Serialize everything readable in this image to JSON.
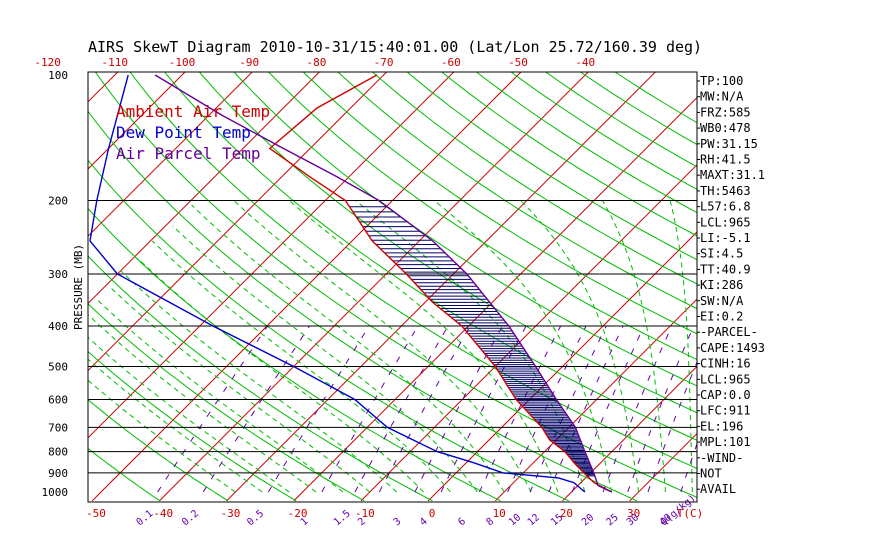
{
  "chart_data": {
    "type": "skewt",
    "title": "AIRS SkewT Diagram 2010-10-31/15:40:01.00 (Lat/Lon 25.72/160.39 deg)",
    "ylabel": "PRESSURE (MB)",
    "xlabel": "T(C)",
    "mixing_ratio_unit": "Q(g/kg)",
    "pressure_ticks": [
      100,
      200,
      300,
      400,
      500,
      600,
      700,
      800,
      900,
      1000
    ],
    "pressure_labels": [
      "100",
      "200",
      "300",
      "400",
      "500",
      "600",
      "700",
      "800",
      "900",
      "1000"
    ],
    "top_temp_labels": [
      "-120",
      "-110",
      "-100",
      "-90",
      "-80",
      "-70",
      "-60",
      "-50",
      "-40"
    ],
    "bottom_temp_labels": [
      "-50",
      "-40",
      "-30",
      "-20",
      "-10",
      "0",
      "10",
      "20",
      "30"
    ],
    "mixing_ratio_labels": [
      "0.1",
      "0.2",
      "0.5",
      "1",
      "1.5",
      "2",
      "3",
      "4",
      "6",
      "8",
      "10",
      "12",
      "15",
      "20",
      "25",
      "30",
      "40"
    ],
    "legend": [
      {
        "name": "Ambient Air Temp",
        "color": "#cc0000"
      },
      {
        "name": "Dew Point Temp",
        "color": "#0000cc"
      },
      {
        "name": "Air Parcel Temp",
        "color": "#660099"
      }
    ],
    "series": [
      {
        "name": "Ambient Air Temp",
        "color": "#cc0000",
        "points": [
          [
            1000,
            26
          ],
          [
            950,
            22
          ],
          [
            900,
            19
          ],
          [
            850,
            16
          ],
          [
            800,
            13
          ],
          [
            750,
            9
          ],
          [
            700,
            6
          ],
          [
            600,
            -2
          ],
          [
            500,
            -10
          ],
          [
            400,
            -21
          ],
          [
            350,
            -29
          ],
          [
            300,
            -37
          ],
          [
            250,
            -47
          ],
          [
            200,
            -57
          ],
          [
            175,
            -66
          ],
          [
            150,
            -76
          ],
          [
            120,
            -75
          ],
          [
            100,
            -71
          ]
        ]
      },
      {
        "name": "Dew Point Temp",
        "color": "#0000cc",
        "points": [
          [
            1000,
            22
          ],
          [
            950,
            19
          ],
          [
            925,
            16
          ],
          [
            900,
            7
          ],
          [
            850,
            1
          ],
          [
            800,
            -6
          ],
          [
            700,
            -17
          ],
          [
            600,
            -26
          ],
          [
            500,
            -40
          ],
          [
            400,
            -58
          ],
          [
            300,
            -80
          ],
          [
            250,
            -89
          ],
          [
            200,
            -94
          ],
          [
            150,
            -100
          ],
          [
            100,
            -108
          ]
        ]
      },
      {
        "name": "Air Parcel Temp",
        "color": "#660099",
        "points": [
          [
            1000,
            26
          ],
          [
            965,
            23
          ],
          [
            900,
            20.5
          ],
          [
            800,
            16
          ],
          [
            700,
            11
          ],
          [
            600,
            4
          ],
          [
            500,
            -4
          ],
          [
            400,
            -14
          ],
          [
            300,
            -28
          ],
          [
            250,
            -38
          ],
          [
            200,
            -52
          ],
          [
            175,
            -62
          ],
          [
            150,
            -74
          ],
          [
            125,
            -88
          ],
          [
            100,
            -104
          ]
        ]
      }
    ],
    "indices": [
      {
        "label": "TP:100"
      },
      {
        "label": "MW:N/A"
      },
      {
        "label": "FRZ:585"
      },
      {
        "label": "WB0:478"
      },
      {
        "label": "PW:31.15"
      },
      {
        "label": "RH:41.5"
      },
      {
        "label": "MAXT:31.1"
      },
      {
        "label": "TH:5463"
      },
      {
        "label": "L57:6.8"
      },
      {
        "label": "LCL:965"
      },
      {
        "label": "LI:-5.1"
      },
      {
        "label": "SI:4.5"
      },
      {
        "label": "TT:40.9"
      },
      {
        "label": "KI:286"
      },
      {
        "label": "SW:N/A"
      },
      {
        "label": "EI:0.2"
      },
      {
        "label": "-PARCEL-"
      },
      {
        "label": "CAPE:1493"
      },
      {
        "label": "CINH:16"
      },
      {
        "label": "LCL:965"
      },
      {
        "label": "CAP:0.0"
      },
      {
        "label": "LFC:911"
      },
      {
        "label": "EL:196"
      },
      {
        "label": "MPL:101"
      },
      {
        "label": "-WIND-"
      },
      {
        "label": "NOT"
      },
      {
        "label": "AVAIL"
      }
    ],
    "colors": {
      "isotherm": "#cc0000",
      "dry_adiabat": "#00bb00",
      "moist_adiabat": "#00bb00",
      "mixing_ratio": "#6600aa",
      "isobar": "#000000",
      "cape_hatch": "#000066"
    }
  }
}
